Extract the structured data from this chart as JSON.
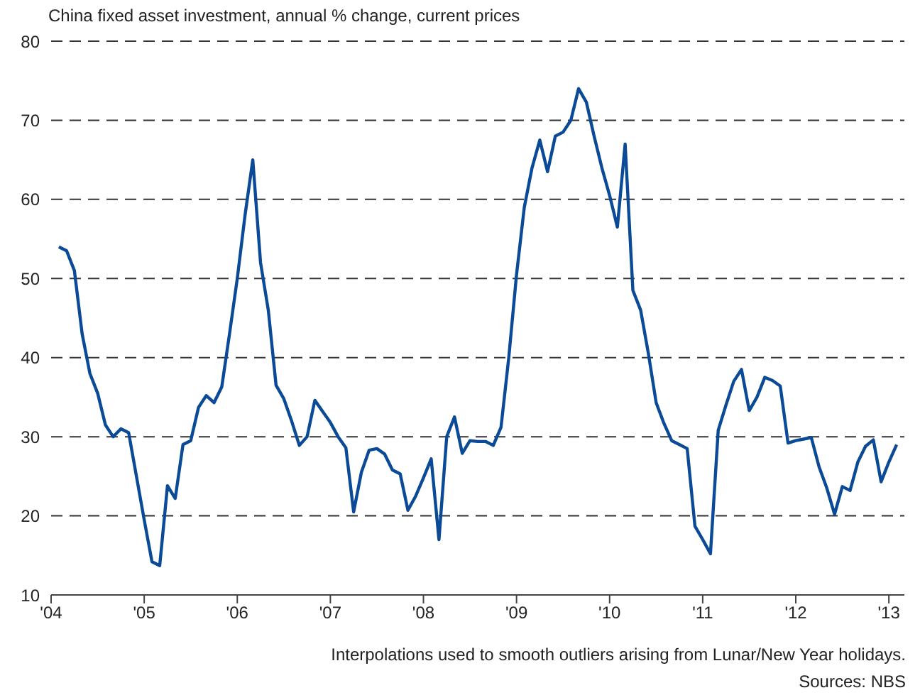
{
  "chart_data": {
    "type": "line",
    "title": "China fixed asset investment, annual % change, current prices",
    "annotations": [
      "Interpolations used to smooth outliers arising from Lunar/New Year holidays.",
      "Sources: NBS"
    ],
    "x": [
      "2004-02",
      "2004-03",
      "2004-04",
      "2004-05",
      "2004-06",
      "2004-07",
      "2004-08",
      "2004-09",
      "2004-10",
      "2004-11",
      "2004-12",
      "2005-01",
      "2005-02",
      "2005-03",
      "2005-04",
      "2005-05",
      "2005-06",
      "2005-07",
      "2005-08",
      "2005-09",
      "2005-10",
      "2005-11",
      "2005-12",
      "2006-01",
      "2006-02",
      "2006-03",
      "2006-04",
      "2006-05",
      "2006-06",
      "2006-07",
      "2006-08",
      "2006-09",
      "2006-10",
      "2006-11",
      "2006-12",
      "2007-01",
      "2007-02",
      "2007-03",
      "2007-04",
      "2007-05",
      "2007-06",
      "2007-07",
      "2007-08",
      "2007-09",
      "2007-10",
      "2007-11",
      "2007-12",
      "2008-01",
      "2008-02",
      "2008-03",
      "2008-04",
      "2008-05",
      "2008-06",
      "2008-07",
      "2008-08",
      "2008-09",
      "2008-10",
      "2008-11",
      "2008-12",
      "2009-01",
      "2009-02",
      "2009-03",
      "2009-04",
      "2009-05",
      "2009-06",
      "2009-07",
      "2009-08",
      "2009-09",
      "2009-10",
      "2009-11",
      "2009-12",
      "2010-01",
      "2010-02",
      "2010-03",
      "2010-04",
      "2010-05",
      "2010-06",
      "2010-07",
      "2010-08",
      "2010-09",
      "2010-10",
      "2010-11",
      "2010-12",
      "2011-01",
      "2011-02",
      "2011-03",
      "2011-04",
      "2011-05",
      "2011-06",
      "2011-07",
      "2011-08",
      "2011-09",
      "2011-10",
      "2011-11",
      "2011-12",
      "2012-01",
      "2012-02",
      "2012-03",
      "2012-04",
      "2012-05",
      "2012-06",
      "2012-07",
      "2012-08",
      "2012-09",
      "2012-10",
      "2012-11",
      "2012-12",
      "2013-01",
      "2013-02"
    ],
    "series": [
      {
        "color": "#0a4a96",
        "values": [
          54,
          53.5,
          51,
          43,
          38,
          35.5,
          31.5,
          30,
          31,
          30.5,
          25,
          19.5,
          14.2,
          13.7,
          23.8,
          22.2,
          29,
          29.5,
          33.7,
          35.2,
          34.3,
          36.3,
          43,
          50,
          58,
          65,
          52,
          46,
          36.5,
          34.8,
          32,
          28.9,
          30,
          34.6,
          33.2,
          31.8,
          30,
          28.6,
          20.5,
          25.5,
          28.3,
          28.5,
          27.8,
          25.8,
          25.3,
          20.7,
          22.5,
          24.8,
          27.2,
          17,
          30,
          32.5,
          27.9,
          29.5,
          29.4,
          29.4,
          28.9,
          31.2,
          40,
          50.5,
          59,
          64,
          67.5,
          63.5,
          68,
          68.5,
          70,
          74,
          72.3,
          68,
          64,
          60.5,
          56.5,
          67,
          48.5,
          46,
          40.5,
          34.3,
          31.7,
          29.5,
          29,
          28.5,
          18.7,
          17,
          15.2,
          30.8,
          34,
          37,
          38.5,
          33.3,
          35,
          37.5,
          37.1,
          36.4,
          29.2,
          29.5,
          29.7,
          29.9,
          26.2,
          23.5,
          20.2,
          23.7,
          23.2,
          26.8,
          28.8,
          29.6,
          24.3,
          26.8,
          29
        ]
      }
    ],
    "xlim": [
      "2004-01",
      "2013-03"
    ],
    "xticks": [
      {
        "value": "2004",
        "label": "'04"
      },
      {
        "value": "2005",
        "label": "'05"
      },
      {
        "value": "2006",
        "label": "'06"
      },
      {
        "value": "2007",
        "label": "'07"
      },
      {
        "value": "2008",
        "label": "'08"
      },
      {
        "value": "2009",
        "label": "'09"
      },
      {
        "value": "2010",
        "label": "'10"
      },
      {
        "value": "2011",
        "label": "'11"
      },
      {
        "value": "2012",
        "label": "'12"
      },
      {
        "value": "2013",
        "label": "'13"
      }
    ],
    "ylim": [
      10,
      80
    ],
    "yticks": [
      10,
      20,
      30,
      40,
      50,
      60,
      70,
      80
    ],
    "grid": "y",
    "legend": false,
    "marker": "none",
    "line_style": "solid"
  }
}
